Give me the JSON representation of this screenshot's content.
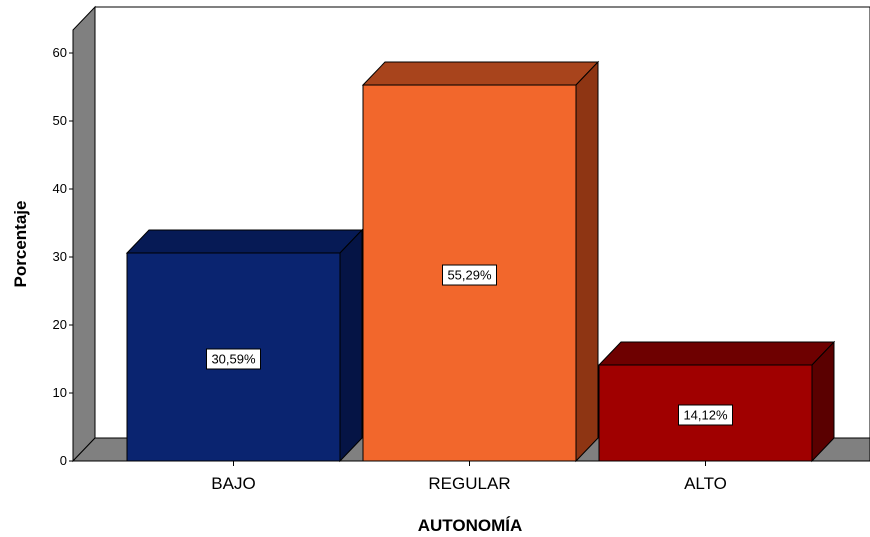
{
  "chart_data": {
    "type": "bar",
    "title": "",
    "xlabel": "AUTONOMÍA",
    "ylabel": "Porcentaje",
    "categories": [
      "BAJO",
      "REGULAR",
      "ALTO"
    ],
    "values": [
      30.59,
      55.29,
      14.12
    ],
    "data_labels": [
      "30,59%",
      "55,29%",
      "14,12%"
    ],
    "ylim": [
      0,
      60
    ],
    "yticks": [
      "0",
      "10",
      "20",
      "30",
      "40",
      "50",
      "60"
    ],
    "grid": false,
    "style": "3d",
    "colors": {
      "bars": [
        "#0a2470",
        "#f2672c",
        "#a00000"
      ],
      "bar_tops": [
        "#061a55",
        "#a8441c",
        "#6e0000"
      ],
      "bar_sides": [
        "#051445",
        "#8e3513",
        "#5a0000"
      ],
      "walls": "#808080",
      "background": "#ffffff"
    }
  }
}
